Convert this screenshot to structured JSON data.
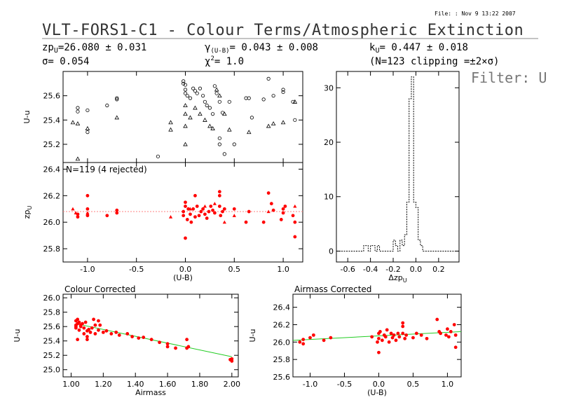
{
  "header": {
    "file_stamp": "File:   : Nov  9 13:22 2007",
    "title": "VLT-FORS1-C1 - Colour Terms/Atmospheric Extinction",
    "zp": "zp",
    "zp_sub": "U",
    "zp_value": "=26.080 ± 0.031",
    "sigma": "σ= 0.054",
    "gamma": "γ",
    "gamma_sub": "(U-B)",
    "gamma_value": "= 0.043 ± 0.008",
    "chi": "χ",
    "chi_sup": "2",
    "chi_value": "=  1.0",
    "k": "k",
    "k_sub": "U",
    "k_value": "= 0.447 ± 0.018",
    "clipping": "(N=123 clipping =±2×σ)",
    "filter_label": "Filter: U"
  },
  "chart_data": [
    {
      "id": "top-raw",
      "type": "scatter",
      "ylabel": "U-u",
      "xlim": [
        -1.25,
        1.2
      ],
      "ylim": [
        25.05,
        25.8
      ],
      "yticks": [
        "25.2",
        "25.4",
        "25.6"
      ],
      "circles": [
        [
          -1.1,
          25.5
        ],
        [
          -1.1,
          25.47
        ],
        [
          -1.0,
          25.48
        ],
        [
          -1.0,
          25.3
        ],
        [
          -0.7,
          25.58
        ],
        [
          -0.7,
          25.57
        ],
        [
          -0.8,
          25.52
        ],
        [
          -0.28,
          25.1
        ],
        [
          -0.02,
          25.72
        ],
        [
          -0.02,
          25.7
        ],
        [
          0.0,
          25.69
        ],
        [
          0.0,
          25.65
        ],
        [
          0.0,
          25.62
        ],
        [
          0.02,
          25.6
        ],
        [
          0.05,
          25.58
        ],
        [
          0.08,
          25.66
        ],
        [
          0.1,
          25.64
        ],
        [
          0.12,
          25.62
        ],
        [
          0.15,
          25.66
        ],
        [
          0.18,
          25.6
        ],
        [
          0.2,
          25.55
        ],
        [
          0.22,
          25.52
        ],
        [
          0.25,
          25.5
        ],
        [
          0.28,
          25.45
        ],
        [
          0.3,
          25.68
        ],
        [
          0.32,
          25.62
        ],
        [
          0.35,
          25.55
        ],
        [
          0.35,
          25.25
        ],
        [
          0.35,
          25.2
        ],
        [
          0.38,
          25.46
        ],
        [
          0.4,
          25.12
        ],
        [
          0.45,
          25.55
        ],
        [
          0.5,
          25.2
        ],
        [
          0.62,
          25.58
        ],
        [
          0.65,
          25.58
        ],
        [
          0.68,
          25.42
        ],
        [
          0.8,
          25.57
        ],
        [
          0.85,
          25.74
        ],
        [
          0.9,
          25.6
        ],
        [
          1.0,
          25.65
        ],
        [
          1.0,
          25.63
        ],
        [
          1.1,
          25.55
        ],
        [
          1.12,
          25.4
        ]
      ],
      "triangles": [
        [
          -1.15,
          25.38
        ],
        [
          -1.1,
          25.37
        ],
        [
          -1.1,
          25.08
        ],
        [
          -1.0,
          25.33
        ],
        [
          -0.7,
          25.42
        ],
        [
          -0.15,
          25.38
        ],
        [
          -0.15,
          25.32
        ],
        [
          0.0,
          25.52
        ],
        [
          0.0,
          25.45
        ],
        [
          0.0,
          25.35
        ],
        [
          0.0,
          25.2
        ],
        [
          0.05,
          25.42
        ],
        [
          0.1,
          25.5
        ],
        [
          0.15,
          25.45
        ],
        [
          0.2,
          25.4
        ],
        [
          0.25,
          25.35
        ],
        [
          0.28,
          25.33
        ],
        [
          0.32,
          25.65
        ],
        [
          0.35,
          25.6
        ],
        [
          0.4,
          25.45
        ],
        [
          0.45,
          25.32
        ],
        [
          0.65,
          25.3
        ],
        [
          0.85,
          25.35
        ],
        [
          0.9,
          25.37
        ],
        [
          1.0,
          25.38
        ],
        [
          1.12,
          25.55
        ]
      ]
    },
    {
      "id": "zp-plot",
      "type": "scatter",
      "annotation": "N=119 (4 rejected)",
      "ylabel": "zp",
      "ylabel_sub": "U",
      "xlabel": "(U-B)",
      "xlim": [
        -1.25,
        1.2
      ],
      "ylim": [
        25.7,
        26.45
      ],
      "yticks": [
        "25.8",
        "26.0",
        "26.2",
        "26.4"
      ],
      "xticks": [
        "-1.0",
        "-0.5",
        "0.0",
        "0.5",
        "1.0"
      ],
      "fit": 26.08,
      "dots": [
        [
          -1.1,
          26.06
        ],
        [
          -1.1,
          26.04
        ],
        [
          -1.0,
          26.2
        ],
        [
          -1.0,
          26.1
        ],
        [
          -1.0,
          26.05
        ],
        [
          -0.8,
          26.05
        ],
        [
          -0.7,
          26.09
        ],
        [
          -0.7,
          26.07
        ],
        [
          -0.02,
          26.08
        ],
        [
          -0.02,
          26.05
        ],
        [
          0.0,
          25.88
        ],
        [
          0.0,
          26.12
        ],
        [
          0.0,
          26.15
        ],
        [
          0.02,
          26.02
        ],
        [
          0.03,
          26.1
        ],
        [
          0.05,
          26.06
        ],
        [
          0.06,
          26.0
        ],
        [
          0.08,
          26.1
        ],
        [
          0.1,
          26.04
        ],
        [
          0.1,
          26.2
        ],
        [
          0.12,
          26.12
        ],
        [
          0.14,
          26.05
        ],
        [
          0.16,
          26.08
        ],
        [
          0.18,
          26.1
        ],
        [
          0.2,
          26.06
        ],
        [
          0.22,
          26.03
        ],
        [
          0.24,
          26.08
        ],
        [
          0.26,
          26.12
        ],
        [
          0.28,
          26.09
        ],
        [
          0.3,
          26.07
        ],
        [
          0.35,
          26.23
        ],
        [
          0.35,
          26.2
        ],
        [
          0.35,
          26.12
        ],
        [
          0.36,
          26.05
        ],
        [
          0.38,
          26.08
        ],
        [
          0.4,
          26.1
        ],
        [
          0.5,
          26.1
        ],
        [
          0.62,
          26.0
        ],
        [
          0.65,
          26.08
        ],
        [
          0.8,
          26.0
        ],
        [
          0.85,
          26.22
        ],
        [
          0.88,
          26.14
        ],
        [
          0.9,
          26.09
        ],
        [
          0.98,
          26.02
        ],
        [
          1.0,
          26.1
        ],
        [
          1.0,
          26.07
        ],
        [
          1.02,
          26.12
        ],
        [
          1.1,
          26.05
        ],
        [
          1.12,
          25.89
        ],
        [
          1.12,
          26.0
        ]
      ],
      "triangles": [
        [
          -1.15,
          26.1
        ],
        [
          -1.12,
          26.07
        ],
        [
          -1.0,
          26.07
        ],
        [
          -0.15,
          26.04
        ],
        [
          0.05,
          26.1
        ],
        [
          0.2,
          26.12
        ],
        [
          0.3,
          26.14
        ],
        [
          0.4,
          26.0
        ],
        [
          0.5,
          26.05
        ],
        [
          0.85,
          26.08
        ],
        [
          1.12,
          26.12
        ]
      ]
    },
    {
      "id": "histogram",
      "type": "histogram",
      "xlabel": "Δzp",
      "xlabel_sub": "U",
      "xlim": [
        -0.7,
        0.38
      ],
      "ylim": [
        -2,
        33
      ],
      "yticks": [
        "0",
        "10",
        "20",
        "30"
      ],
      "xticks": [
        "-0.6",
        "-0.4",
        "-0.2",
        "0.0",
        "0.2"
      ],
      "bin_width": 0.02,
      "bins_start": -0.7,
      "counts": [
        0,
        0,
        0,
        0,
        0,
        0,
        0,
        0,
        0,
        0,
        0,
        0,
        1,
        1,
        0,
        1,
        1,
        0,
        1,
        0,
        0,
        0,
        0,
        0,
        0,
        2,
        1,
        0,
        2,
        1,
        3,
        9,
        28,
        32,
        9,
        8,
        2,
        1,
        0,
        0,
        0,
        0,
        0,
        0,
        0,
        0,
        0,
        0,
        0,
        0,
        0,
        0,
        0,
        0
      ]
    },
    {
      "id": "colour-corrected",
      "type": "scatter",
      "title": "Colour Corrected",
      "ylabel": "U-u",
      "xlabel": "Airmass",
      "xlim": [
        0.95,
        2.04
      ],
      "ylim": [
        24.9,
        26.05
      ],
      "yticks": [
        "25.0",
        "25.2",
        "25.4",
        "25.6",
        "25.8",
        "26.0"
      ],
      "xticks": [
        "1.00",
        "1.20",
        "1.40",
        "1.60",
        "1.80",
        "2.00"
      ],
      "fit_line": [
        [
          1.03,
          25.64
        ],
        [
          2.0,
          25.18
        ]
      ],
      "dots": [
        [
          1.03,
          25.62
        ],
        [
          1.03,
          25.6
        ],
        [
          1.03,
          25.58
        ],
        [
          1.03,
          25.68
        ],
        [
          1.04,
          25.42
        ],
        [
          1.04,
          25.64
        ],
        [
          1.04,
          25.7
        ],
        [
          1.05,
          25.66
        ],
        [
          1.05,
          25.55
        ],
        [
          1.06,
          25.62
        ],
        [
          1.06,
          25.6
        ],
        [
          1.07,
          25.64
        ],
        [
          1.08,
          25.5
        ],
        [
          1.08,
          25.58
        ],
        [
          1.09,
          25.66
        ],
        [
          1.1,
          25.54
        ],
        [
          1.1,
          25.46
        ],
        [
          1.1,
          25.42
        ],
        [
          1.11,
          25.56
        ],
        [
          1.12,
          25.52
        ],
        [
          1.13,
          25.58
        ],
        [
          1.14,
          25.7
        ],
        [
          1.15,
          25.62
        ],
        [
          1.15,
          25.5
        ],
        [
          1.17,
          25.68
        ],
        [
          1.17,
          25.55
        ],
        [
          1.18,
          25.62
        ],
        [
          1.2,
          25.52
        ],
        [
          1.22,
          25.54
        ],
        [
          1.25,
          25.5
        ],
        [
          1.28,
          25.52
        ],
        [
          1.3,
          25.48
        ],
        [
          1.35,
          25.5
        ],
        [
          1.38,
          25.46
        ],
        [
          1.42,
          25.44
        ],
        [
          1.45,
          25.45
        ],
        [
          1.5,
          25.42
        ],
        [
          1.55,
          25.38
        ],
        [
          1.6,
          25.32
        ],
        [
          1.6,
          25.36
        ],
        [
          1.65,
          25.3
        ],
        [
          1.72,
          25.42
        ],
        [
          1.72,
          25.3
        ],
        [
          1.73,
          25.32
        ],
        [
          1.99,
          25.14
        ],
        [
          2.0,
          25.12
        ],
        [
          2.0,
          25.15
        ]
      ]
    },
    {
      "id": "airmass-corrected",
      "type": "scatter",
      "title": "Airmass Corrected",
      "ylabel": "U-u",
      "xlabel": "(U-B)",
      "xlim": [
        -1.25,
        1.2
      ],
      "ylim": [
        25.6,
        26.55
      ],
      "yticks": [
        "25.6",
        "25.8",
        "26.0",
        "26.2",
        "26.4"
      ],
      "xticks": [
        "-1.0",
        "-0.5",
        "0.0",
        "0.5",
        "1.0"
      ],
      "fit_line": [
        [
          -1.25,
          26.02
        ],
        [
          1.2,
          26.12
        ]
      ],
      "dots": [
        [
          -1.15,
          26.0
        ],
        [
          -1.1,
          26.03
        ],
        [
          -1.1,
          25.98
        ],
        [
          -1.0,
          26.05
        ],
        [
          -0.95,
          26.08
        ],
        [
          -0.8,
          26.02
        ],
        [
          -0.7,
          26.05
        ],
        [
          -0.1,
          26.06
        ],
        [
          -0.02,
          26.0
        ],
        [
          0.0,
          25.88
        ],
        [
          0.0,
          26.1
        ],
        [
          0.0,
          26.04
        ],
        [
          0.02,
          26.12
        ],
        [
          0.05,
          26.02
        ],
        [
          0.08,
          26.08
        ],
        [
          0.1,
          26.06
        ],
        [
          0.12,
          26.14
        ],
        [
          0.15,
          26.0
        ],
        [
          0.18,
          26.1
        ],
        [
          0.2,
          26.05
        ],
        [
          0.22,
          26.08
        ],
        [
          0.25,
          26.02
        ],
        [
          0.28,
          26.1
        ],
        [
          0.3,
          26.06
        ],
        [
          0.35,
          26.22
        ],
        [
          0.35,
          26.18
        ],
        [
          0.35,
          26.1
        ],
        [
          0.38,
          26.04
        ],
        [
          0.4,
          26.08
        ],
        [
          0.5,
          26.05
        ],
        [
          0.55,
          26.1
        ],
        [
          0.62,
          26.08
        ],
        [
          0.7,
          26.04
        ],
        [
          0.85,
          26.26
        ],
        [
          0.88,
          26.12
        ],
        [
          0.9,
          26.1
        ],
        [
          0.98,
          26.08
        ],
        [
          1.0,
          26.15
        ],
        [
          1.02,
          26.06
        ],
        [
          1.05,
          26.12
        ],
        [
          1.1,
          26.2
        ],
        [
          1.12,
          25.94
        ],
        [
          1.12,
          26.08
        ]
      ]
    }
  ]
}
